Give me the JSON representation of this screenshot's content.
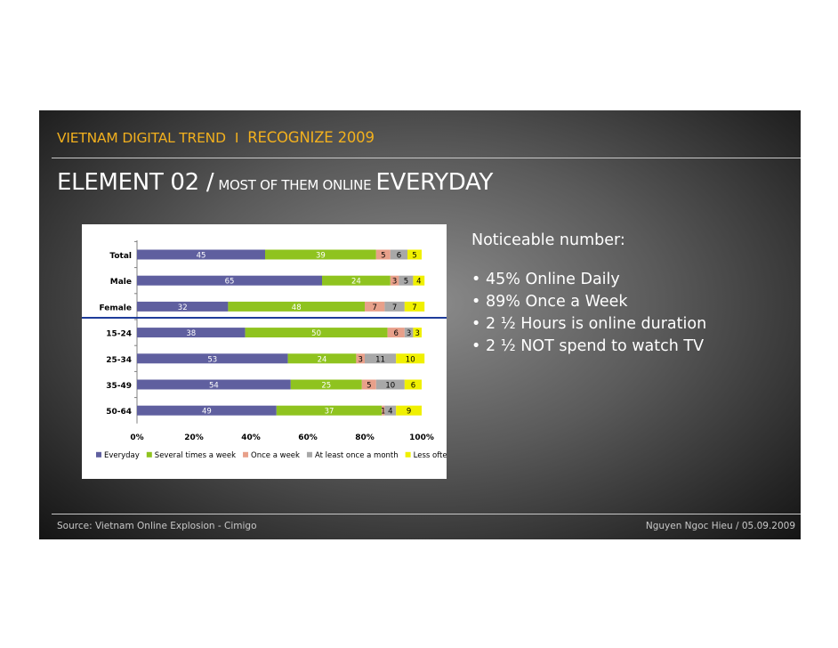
{
  "header": {
    "brand": "VIETNAM DIGITAL TREND",
    "separator": "I",
    "event": "RECOGNIZE 2009"
  },
  "heading": {
    "element": "ELEMENT 02 /",
    "phrase": "MOST OF THEM ONLINE",
    "emphasis": "EVERYDAY"
  },
  "notes": {
    "lead": "Noticeable number:",
    "bullets": [
      "45% Online Daily",
      "89% Once a Week",
      "2 ½ Hours is online duration",
      "2 ½ NOT spend to watch TV"
    ]
  },
  "footer": {
    "source": "Source: Vietnam Online Explosion - Cimigo",
    "author": "Nguyen Ngoc Hieu / 05.09.2009"
  },
  "chart_data": {
    "type": "bar",
    "orientation": "horizontal",
    "stacked": true,
    "categories": [
      "Total",
      "Male",
      "Female",
      "15-24",
      "25-34",
      "35-49",
      "50-64"
    ],
    "series": [
      {
        "name": "Everyday",
        "color": "#5f5f9f",
        "values": [
          45,
          65,
          32,
          38,
          53,
          54,
          49
        ]
      },
      {
        "name": "Several times a week",
        "color": "#8fc31f",
        "values": [
          39,
          24,
          48,
          50,
          24,
          25,
          37
        ]
      },
      {
        "name": "Once a week",
        "color": "#e8a08a",
        "values": [
          5,
          3,
          7,
          6,
          3,
          5,
          1
        ]
      },
      {
        "name": "At least once a month",
        "color": "#a8a8a8",
        "values": [
          6,
          5,
          7,
          3,
          11,
          10,
          4
        ]
      },
      {
        "name": "Less often",
        "color": "#f0f000",
        "values": [
          5,
          4,
          7,
          3,
          10,
          6,
          9
        ]
      }
    ],
    "xticks": [
      "0%",
      "20%",
      "40%",
      "60%",
      "80%",
      "100%"
    ],
    "xlim": [
      0,
      100
    ],
    "legend_position": "bottom",
    "grid": false
  }
}
